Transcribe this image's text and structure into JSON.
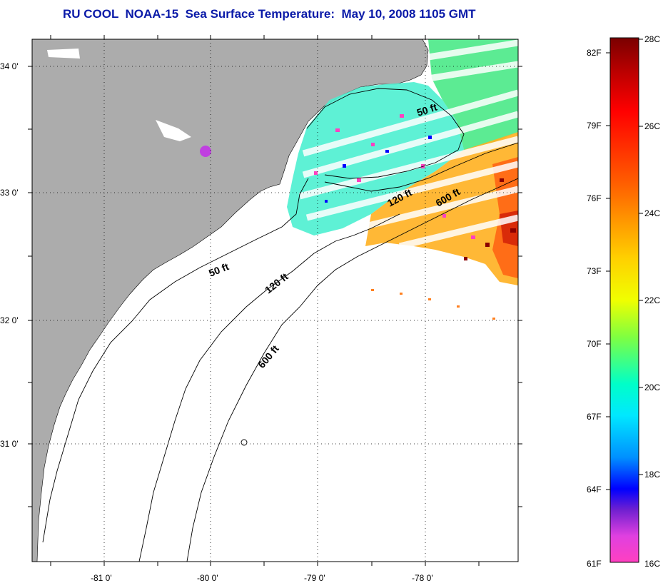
{
  "title": "RU COOL  NOAA-15  Sea Surface Temperature:  May 10, 2008 1105 GMT",
  "map": {
    "lon_ticks": [
      "-81 0'",
      "-80 0'",
      "-79 0'",
      "-78 0'"
    ],
    "lat_ticks": [
      "34 0'",
      "33 0'",
      "32 0'",
      "31 0'"
    ],
    "depth_labels": {
      "a": "50 ft",
      "b": "120 ft",
      "c": "600 ft",
      "d": "50 ft",
      "e": "120 ft",
      "f": "600 ft"
    }
  },
  "colorbar": {
    "f_labels": [
      "82F",
      "79F",
      "76F",
      "73F",
      "70F",
      "67F",
      "64F",
      "61F"
    ],
    "c_labels": [
      "28C",
      "26C",
      "24C",
      "22C",
      "20C",
      "18C",
      "16C"
    ]
  },
  "colors": {
    "land": "#acacac",
    "title": "#0a1aa8"
  }
}
